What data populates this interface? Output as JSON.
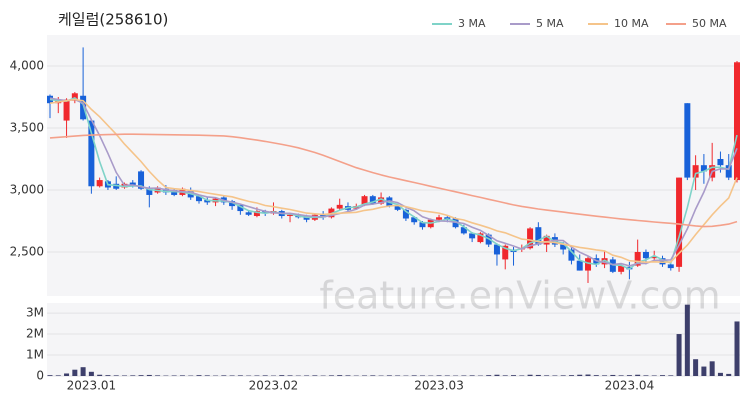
{
  "chart_data": {
    "type": "candlestick",
    "title": "케일럼(258610)",
    "watermark": "feature.enViewV.com",
    "categories": [
      null,
      null,
      null,
      null,
      null,
      "2023.01",
      null,
      null,
      null,
      null,
      null,
      null,
      null,
      null,
      null,
      null,
      null,
      null,
      null,
      null,
      null,
      null,
      null,
      null,
      null,
      null,
      null,
      "2023.02",
      null,
      null,
      null,
      null,
      null,
      null,
      null,
      null,
      null,
      null,
      null,
      null,
      null,
      null,
      null,
      null,
      null,
      null,
      null,
      "2023.03",
      null,
      null,
      null,
      null,
      null,
      null,
      null,
      null,
      null,
      null,
      null,
      null,
      null,
      null,
      null,
      null,
      null,
      null,
      null,
      null,
      null,
      null,
      "2023.04",
      null,
      null,
      null,
      null,
      null,
      null,
      null,
      null,
      null,
      null,
      null,
      null,
      null
    ],
    "open": [
      3760,
      3700,
      3560,
      3720,
      3760,
      3560,
      3030,
      3070,
      3050,
      3020,
      3060,
      3150,
      3010,
      2980,
      3010,
      3000,
      2960,
      3000,
      2950,
      2920,
      2900,
      2940,
      2910,
      2880,
      2820,
      2790,
      2830,
      2810,
      2830,
      2790,
      2800,
      2790,
      2760,
      2800,
      2780,
      2850,
      2870,
      2850,
      2880,
      2950,
      2890,
      2940,
      2870,
      2840,
      2780,
      2740,
      2700,
      2760,
      2780,
      2770,
      2700,
      2650,
      2580,
      2640,
      2560,
      2440,
      2520,
      2520,
      2530,
      2700,
      2560,
      2620,
      2560,
      2520,
      2430,
      2350,
      2450,
      2400,
      2440,
      2340,
      2380,
      2390,
      2500,
      2450,
      2450,
      2400,
      2380,
      3700,
      3100,
      3200,
      3100,
      3250,
      3200,
      3080
    ],
    "high": [
      3770,
      3750,
      3740,
      3790,
      4150,
      3570,
      3100,
      3080,
      3110,
      3060,
      3080,
      3160,
      3030,
      3030,
      3040,
      3010,
      3020,
      3020,
      2960,
      2940,
      2940,
      2950,
      2920,
      2890,
      2830,
      2860,
      2840,
      2900,
      2840,
      2810,
      2810,
      2800,
      2810,
      2830,
      2860,
      2930,
      2900,
      2890,
      2960,
      2960,
      2980,
      2950,
      2880,
      2850,
      2790,
      2750,
      2770,
      2800,
      2790,
      2780,
      2720,
      2660,
      2660,
      2650,
      2570,
      2560,
      2540,
      2560,
      2700,
      2740,
      2640,
      2650,
      2580,
      2540,
      2480,
      2470,
      2480,
      2510,
      2460,
      2400,
      2420,
      2600,
      2520,
      2510,
      2470,
      2420,
      3100,
      3700,
      3280,
      3290,
      3380,
      3310,
      3290,
      4040
    ],
    "low": [
      3580,
      3620,
      3420,
      3700,
      3560,
      2970,
      3020,
      3000,
      3000,
      3010,
      3020,
      3000,
      2860,
      2970,
      2960,
      2950,
      2950,
      2920,
      2890,
      2880,
      2870,
      2880,
      2840,
      2800,
      2790,
      2780,
      2790,
      2800,
      2770,
      2740,
      2770,
      2740,
      2750,
      2760,
      2770,
      2840,
      2820,
      2840,
      2870,
      2880,
      2880,
      2860,
      2830,
      2750,
      2720,
      2680,
      2690,
      2740,
      2740,
      2690,
      2640,
      2580,
      2570,
      2540,
      2390,
      2360,
      2390,
      2500,
      2520,
      2550,
      2500,
      2540,
      2480,
      2400,
      2350,
      2250,
      2380,
      2370,
      2330,
      2320,
      2280,
      2380,
      2400,
      2420,
      2380,
      2350,
      2340,
      3080,
      3000,
      3050,
      3070,
      3140,
      3080,
      3060
    ],
    "close": [
      3700,
      3720,
      3730,
      3780,
      3570,
      3030,
      3080,
      3020,
      3010,
      3050,
      3040,
      3010,
      2960,
      3020,
      2980,
      2960,
      3010,
      2940,
      2910,
      2900,
      2930,
      2900,
      2870,
      2830,
      2800,
      2830,
      2810,
      2830,
      2790,
      2800,
      2780,
      2760,
      2800,
      2780,
      2850,
      2880,
      2840,
      2870,
      2950,
      2890,
      2940,
      2870,
      2840,
      2770,
      2740,
      2700,
      2760,
      2780,
      2760,
      2700,
      2650,
      2610,
      2650,
      2560,
      2480,
      2550,
      2500,
      2530,
      2690,
      2560,
      2630,
      2560,
      2520,
      2430,
      2350,
      2450,
      2400,
      2450,
      2340,
      2390,
      2360,
      2500,
      2450,
      2460,
      2400,
      2370,
      3100,
      3100,
      3200,
      3150,
      3200,
      3200,
      3100,
      4030
    ],
    "up_color": "#f0282d",
    "down_color": "#1861d9",
    "ylim": [
      2145,
      4250
    ],
    "yticks": [
      {
        "value": 2500,
        "label": "2,500"
      },
      {
        "value": 3000,
        "label": "3,000"
      },
      {
        "value": 3500,
        "label": "3,500"
      },
      {
        "value": 4000,
        "label": "4,000"
      }
    ],
    "grid": true,
    "series": [
      {
        "name": "3 MA",
        "color": "#7fd3c8",
        "values": [
          3730,
          3720,
          3717,
          3743,
          3693,
          3460,
          3227,
          3043,
          3037,
          3027,
          3033,
          3033,
          3003,
          2997,
          2987,
          2987,
          2983,
          2970,
          2953,
          2917,
          2913,
          2910,
          2900,
          2867,
          2833,
          2820,
          2813,
          2823,
          2810,
          2807,
          2790,
          2780,
          2780,
          2780,
          2810,
          2837,
          2857,
          2863,
          2887,
          2903,
          2927,
          2900,
          2883,
          2827,
          2783,
          2737,
          2733,
          2747,
          2767,
          2747,
          2703,
          2653,
          2637,
          2607,
          2563,
          2530,
          2510,
          2527,
          2573,
          2593,
          2627,
          2583,
          2570,
          2503,
          2433,
          2410,
          2400,
          2433,
          2397,
          2393,
          2363,
          2417,
          2437,
          2470,
          2437,
          2410,
          2623,
          2857,
          3133,
          3150,
          3183,
          3183,
          3167,
          3443
        ]
      },
      {
        "name": "5 MA",
        "color": "#a99bc9",
        "values": [
          3740,
          3730,
          3720,
          3730,
          3700,
          3566,
          3438,
          3296,
          3142,
          3038,
          3040,
          3026,
          3014,
          3016,
          3002,
          2994,
          2986,
          2982,
          2960,
          2944,
          2938,
          2916,
          2902,
          2886,
          2866,
          2846,
          2828,
          2816,
          2812,
          2812,
          2802,
          2792,
          2786,
          2784,
          2794,
          2810,
          2826,
          2844,
          2878,
          2886,
          2898,
          2912,
          2898,
          2862,
          2832,
          2784,
          2762,
          2750,
          2748,
          2740,
          2730,
          2700,
          2674,
          2634,
          2590,
          2570,
          2548,
          2524,
          2550,
          2566,
          2582,
          2594,
          2592,
          2540,
          2498,
          2468,
          2430,
          2416,
          2398,
          2406,
          2388,
          2408,
          2408,
          2432,
          2434,
          2436,
          2556,
          2686,
          2846,
          2984,
          3150,
          3170,
          3170,
          3336
        ]
      },
      {
        "name": "10 MA",
        "color": "#f5c48a",
        "values": [
          3700,
          3710,
          3720,
          3730,
          3720,
          3650,
          3590,
          3520,
          3450,
          3370,
          3300,
          3230,
          3150,
          3080,
          3020,
          3010,
          3005,
          2997,
          2987,
          2976,
          2965,
          2954,
          2945,
          2926,
          2908,
          2895,
          2875,
          2865,
          2853,
          2843,
          2828,
          2814,
          2808,
          2803,
          2808,
          2813,
          2816,
          2820,
          2835,
          2844,
          2860,
          2871,
          2875,
          2866,
          2849,
          2831,
          2823,
          2814,
          2795,
          2770,
          2758,
          2735,
          2716,
          2695,
          2670,
          2655,
          2629,
          2604,
          2597,
          2583,
          2581,
          2576,
          2563,
          2550,
          2537,
          2527,
          2517,
          2509,
          2474,
          2457,
          2430,
          2424,
          2418,
          2421,
          2418,
          2420,
          2490,
          2555,
          2640,
          2720,
          2800,
          2870,
          2935,
          3100
        ]
      },
      {
        "name": "50 MA",
        "color": "#f4a08a",
        "values": [
          3420,
          3425,
          3430,
          3435,
          3440,
          3443,
          3445,
          3447,
          3448,
          3450,
          3450,
          3449,
          3448,
          3447,
          3446,
          3445,
          3444,
          3443,
          3442,
          3440,
          3438,
          3436,
          3430,
          3422,
          3412,
          3402,
          3392,
          3380,
          3368,
          3355,
          3340,
          3322,
          3302,
          3280,
          3255,
          3230,
          3205,
          3180,
          3160,
          3140,
          3122,
          3105,
          3090,
          3075,
          3060,
          3045,
          3030,
          3015,
          3000,
          2985,
          2970,
          2955,
          2940,
          2925,
          2910,
          2895,
          2880,
          2868,
          2857,
          2847,
          2838,
          2830,
          2822,
          2813,
          2805,
          2797,
          2789,
          2781,
          2774,
          2767,
          2760,
          2754,
          2748,
          2742,
          2736,
          2731,
          2725,
          2718,
          2710,
          2705,
          2707,
          2715,
          2725,
          2745
        ]
      }
    ],
    "volume": {
      "color": "#3d3f6b",
      "values": [
        40000,
        30000,
        120000,
        300000,
        420000,
        200000,
        60000,
        40000,
        30000,
        25000,
        30000,
        40000,
        50000,
        30000,
        20000,
        25000,
        30000,
        20000,
        40000,
        30000,
        20000,
        30000,
        25000,
        30000,
        20000,
        25000,
        30000,
        20000,
        40000,
        30000,
        20000,
        25000,
        30000,
        20000,
        30000,
        40000,
        30000,
        20000,
        25000,
        30000,
        20000,
        30000,
        25000,
        20000,
        30000,
        25000,
        20000,
        30000,
        25000,
        20000,
        25000,
        30000,
        20000,
        40000,
        60000,
        30000,
        40000,
        25000,
        60000,
        50000,
        30000,
        25000,
        30000,
        40000,
        60000,
        70000,
        40000,
        30000,
        50000,
        30000,
        40000,
        60000,
        30000,
        25000,
        40000,
        30000,
        2000000,
        3400000,
        800000,
        450000,
        700000,
        150000,
        100000,
        2600000
      ],
      "ylim": [
        0,
        3480000
      ],
      "yticks": [
        0,
        {
          "value": 1000000,
          "label": "1M"
        },
        {
          "value": 2000000,
          "label": "2M"
        },
        {
          "value": 3000000,
          "label": "3M"
        }
      ]
    }
  }
}
